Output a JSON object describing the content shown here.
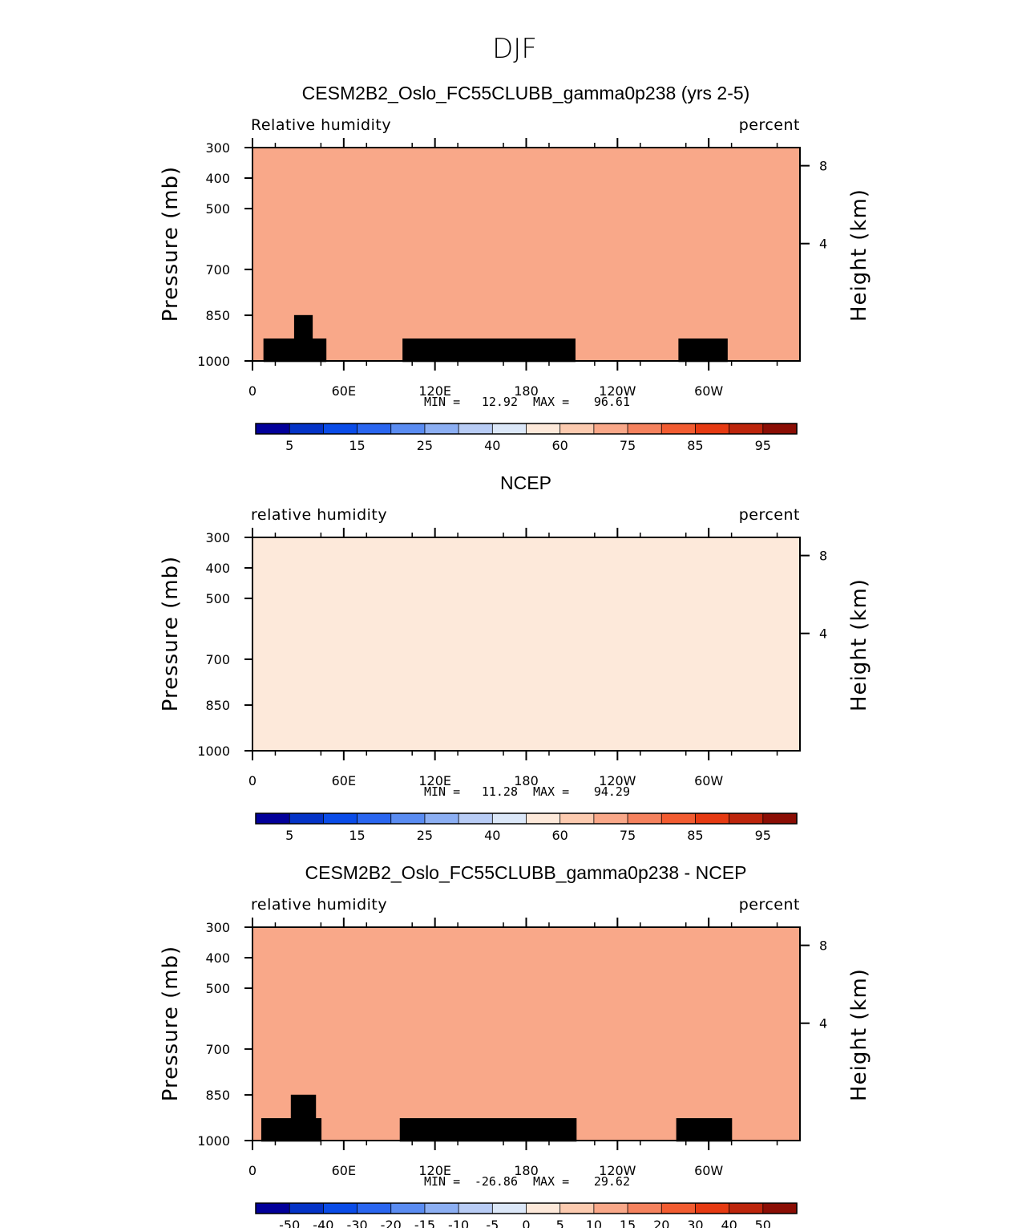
{
  "figure_title": "DJF",
  "chart_data": [
    {
      "type": "heatmap",
      "title": "CESM2B2_Oslo_FC55CLUBB_gamma0p238 (yrs 2-5)",
      "left_label": "Relative  humidity",
      "right_label": "percent",
      "ylabel": "Pressure  (mb)",
      "ylabel_right": "Height  (km)",
      "x_ticks": [
        "0",
        "60E",
        "120E",
        "180",
        "120W",
        "60W"
      ],
      "y_ticks": [
        "300",
        "400",
        "500",
        "700",
        "850",
        "1000"
      ],
      "y_ticks_right": [
        "8",
        "4"
      ],
      "min_label": "MIN =",
      "min": "12.92",
      "max_label": "MAX =",
      "max": "96.61",
      "colorbar_labels": [
        "5",
        "15",
        "25",
        "40",
        "60",
        "75",
        "85",
        "95"
      ],
      "colorbar_colors": [
        "#02009a",
        "#0433c7",
        "#0a4ce8",
        "#2a66f0",
        "#5a8cf2",
        "#8caff3",
        "#b8ccf5",
        "#dbe7f8",
        "#fde9da",
        "#fccbb0",
        "#f9a889",
        "#f5825e",
        "#f25c31",
        "#e63a12",
        "#bd250c",
        "#8b0e05"
      ],
      "terrain": true
    },
    {
      "type": "heatmap",
      "title": "NCEP",
      "left_label": "relative  humidity",
      "right_label": "percent",
      "ylabel": "Pressure  (mb)",
      "ylabel_right": "Height  (km)",
      "x_ticks": [
        "0",
        "60E",
        "120E",
        "180",
        "120W",
        "60W"
      ],
      "y_ticks": [
        "300",
        "400",
        "500",
        "700",
        "850",
        "1000"
      ],
      "y_ticks_right": [
        "8",
        "4"
      ],
      "min_label": "MIN =",
      "min": "11.28",
      "max_label": "MAX =",
      "max": "94.29",
      "colorbar_labels": [
        "5",
        "15",
        "25",
        "40",
        "60",
        "75",
        "85",
        "95"
      ],
      "colorbar_colors": [
        "#02009a",
        "#0433c7",
        "#0a4ce8",
        "#2a66f0",
        "#5a8cf2",
        "#8caff3",
        "#b8ccf5",
        "#dbe7f8",
        "#fde9da",
        "#fccbb0",
        "#f9a889",
        "#f5825e",
        "#f25c31",
        "#e63a12",
        "#bd250c",
        "#8b0e05"
      ],
      "terrain": false
    },
    {
      "type": "heatmap",
      "title": "CESM2B2_Oslo_FC55CLUBB_gamma0p238 - NCEP",
      "left_label": "relative  humidity",
      "right_label": "percent",
      "ylabel": "Pressure  (mb)",
      "ylabel_right": "Height  (km)",
      "x_ticks": [
        "0",
        "60E",
        "120E",
        "180",
        "120W",
        "60W"
      ],
      "y_ticks": [
        "300",
        "400",
        "500",
        "700",
        "850",
        "1000"
      ],
      "y_ticks_right": [
        "8",
        "4"
      ],
      "min_label": "MIN =",
      "min": "-26.86",
      "max_label": "MAX =",
      "max": "29.62",
      "colorbar_labels": [
        "-50",
        "-40",
        "-30",
        "-20",
        "-15",
        "-10",
        "-5",
        "0",
        "5",
        "10",
        "15",
        "20",
        "30",
        "40",
        "50"
      ],
      "colorbar_colors": [
        "#02009a",
        "#0433c7",
        "#0a4ce8",
        "#2a66f0",
        "#5a8cf2",
        "#8caff3",
        "#b8ccf5",
        "#dbe7f8",
        "#fde9da",
        "#fccbb0",
        "#f9a889",
        "#f5825e",
        "#f25c31",
        "#e63a12",
        "#bd250c",
        "#8b0e05"
      ],
      "terrain": true
    }
  ]
}
